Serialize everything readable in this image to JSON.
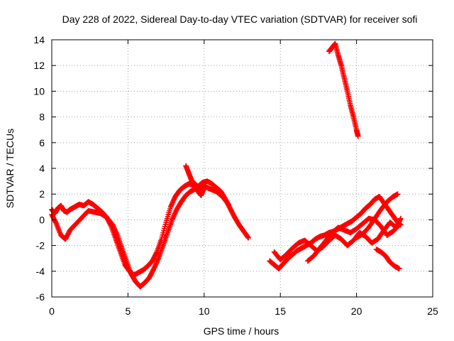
{
  "chart_data": {
    "type": "scatter",
    "title": "Day 228 of 2022, Sidereal Day-to-day VTEC variation (SDTVAR) for receiver sofi",
    "xlabel": "GPS time / hours",
    "ylabel": "SDTVAR / TECUs",
    "xlim": [
      0,
      25
    ],
    "ylim": [
      -6,
      14
    ],
    "xticks": [
      0,
      5,
      10,
      15,
      20,
      25
    ],
    "yticks": [
      -6,
      -4,
      -2,
      0,
      2,
      4,
      6,
      8,
      10,
      12,
      14
    ],
    "grid": true,
    "marker": "+",
    "series": [
      {
        "name": "SDTVAR",
        "color": "#ff0000",
        "segments": [
          {
            "x": [
              0.0,
              0.2,
              0.4,
              0.6,
              0.8,
              1.0,
              1.2,
              1.5,
              1.8,
              2.1,
              2.4,
              2.7,
              3.0,
              3.3,
              3.6,
              3.9,
              4.2,
              4.5,
              4.8,
              5.1,
              5.4,
              5.7,
              6.0,
              6.3,
              6.6,
              6.9,
              7.2,
              7.5,
              7.8,
              8.1,
              8.4,
              8.7,
              9.0,
              9.3,
              9.6,
              9.9,
              10.2,
              10.5,
              10.8,
              11.1,
              11.4,
              11.7,
              12.0,
              12.3,
              12.6,
              12.9
            ],
            "y": [
              0.8,
              0.5,
              0.9,
              1.1,
              0.7,
              0.6,
              0.8,
              1.0,
              1.2,
              1.1,
              1.4,
              1.2,
              0.9,
              0.6,
              0.2,
              -0.5,
              -1.5,
              -2.5,
              -3.5,
              -4.0,
              -4.3,
              -4.1,
              -3.9,
              -3.6,
              -3.2,
              -2.5,
              -1.5,
              -0.2,
              1.0,
              1.8,
              2.3,
              2.6,
              2.8,
              2.7,
              2.6,
              2.9,
              3.0,
              2.8,
              2.5,
              2.2,
              1.6,
              0.9,
              0.2,
              -0.4,
              -0.9,
              -1.4
            ]
          },
          {
            "x": [
              0.0,
              0.3,
              0.6,
              0.9,
              1.2,
              1.6,
              2.0,
              2.4,
              2.8,
              3.2,
              3.6,
              4.0,
              4.3,
              4.6,
              4.9,
              5.2,
              5.5,
              5.8,
              6.1,
              6.4,
              6.7,
              7.0,
              7.3,
              7.6,
              7.9,
              8.2,
              8.5,
              8.8,
              9.1,
              9.4,
              9.7,
              10.0,
              10.4,
              10.8,
              11.2,
              11.6
            ],
            "y": [
              0.4,
              -0.3,
              -1.2,
              -1.5,
              -0.8,
              -0.3,
              0.2,
              0.7,
              0.6,
              0.5,
              0.2,
              -0.4,
              -1.2,
              -2.2,
              -3.2,
              -4.2,
              -4.8,
              -5.2,
              -4.9,
              -4.5,
              -3.8,
              -3.0,
              -2.0,
              -1.0,
              0.0,
              0.8,
              1.4,
              1.9,
              2.2,
              2.4,
              2.3,
              2.6,
              2.4,
              2.2,
              1.8,
              1.2
            ]
          },
          {
            "x": [
              8.8,
              9.0,
              9.2,
              9.4,
              9.6,
              9.8,
              10.0
            ],
            "y": [
              4.2,
              3.6,
              3.0,
              2.8,
              2.2,
              1.9,
              2.5
            ]
          },
          {
            "x": [
              14.3,
              14.6,
              14.9,
              15.2,
              15.5,
              15.8,
              16.1,
              16.4,
              16.7,
              17.0,
              17.3,
              17.6,
              17.9,
              18.2,
              18.5,
              18.8,
              19.1,
              19.4,
              19.7,
              20.0,
              20.3,
              20.6,
              20.9,
              21.2,
              21.5,
              21.8,
              22.1,
              22.4,
              22.7,
              22.9
            ],
            "y": [
              -3.2,
              -3.5,
              -3.8,
              -3.4,
              -3.0,
              -2.7,
              -2.4,
              -2.2,
              -2.0,
              -1.8,
              -1.5,
              -1.3,
              -1.2,
              -1.0,
              -0.9,
              -0.7,
              -0.5,
              -0.3,
              -0.1,
              0.2,
              0.5,
              0.9,
              1.2,
              1.6,
              1.8,
              1.3,
              0.8,
              0.3,
              -0.2,
              -0.4
            ]
          },
          {
            "x": [
              14.6,
              15.0,
              15.4,
              15.8,
              16.2,
              16.6,
              17.0,
              17.4,
              17.8,
              18.2,
              18.6,
              19.0,
              19.4,
              19.8,
              20.2,
              20.6,
              21.0,
              21.4,
              21.8,
              22.2,
              22.6,
              22.9
            ],
            "y": [
              -2.5,
              -3.1,
              -2.7,
              -2.2,
              -1.8,
              -1.6,
              -2.0,
              -2.4,
              -2.1,
              -1.6,
              -1.2,
              -1.5,
              -2.0,
              -1.6,
              -1.0,
              -1.3,
              -1.8,
              -1.5,
              -0.8,
              -0.2,
              -0.6,
              0.1
            ]
          },
          {
            "x": [
              16.8,
              17.2,
              17.6,
              18.0,
              18.4,
              18.8,
              19.2,
              19.6,
              20.0,
              20.4,
              20.8,
              21.2,
              21.6,
              22.0,
              22.4,
              22.8
            ],
            "y": [
              -3.2,
              -2.8,
              -2.2,
              -1.6,
              -1.0,
              -0.6,
              -0.8,
              -1.0,
              -0.7,
              -0.3,
              0.1,
              0.0,
              -0.5,
              -1.2,
              -0.9,
              -0.4
            ]
          },
          {
            "x": [
              20.0,
              20.4,
              20.8,
              21.2,
              21.6,
              22.0,
              22.4,
              22.7
            ],
            "y": [
              -1.4,
              -1.1,
              -0.6,
              0.1,
              0.8,
              1.4,
              1.8,
              2.0
            ]
          },
          {
            "x": [
              21.3,
              21.6,
              21.9,
              22.2,
              22.5,
              22.8
            ],
            "y": [
              -2.3,
              -2.5,
              -2.8,
              -3.3,
              -3.6,
              -3.8
            ]
          },
          {
            "x": [
              18.2,
              18.4,
              18.6,
              18.8,
              19.0,
              19.2,
              19.4,
              19.6,
              19.8,
              20.0,
              20.1
            ],
            "y": [
              13.1,
              13.4,
              13.7,
              12.8,
              12.0,
              11.0,
              10.0,
              8.9,
              8.0,
              7.0,
              6.5
            ]
          }
        ]
      }
    ]
  }
}
